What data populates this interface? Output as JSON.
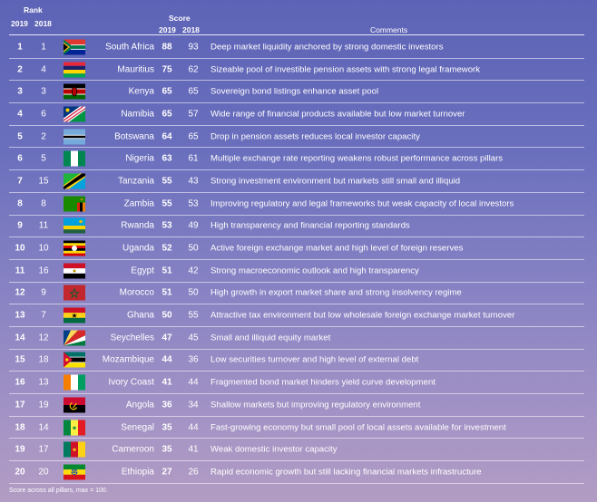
{
  "header": {
    "rank_label": "Rank",
    "rank_2019": "2019",
    "rank_2018": "2018",
    "score_label": "Score",
    "score_2019": "2019",
    "score_2018": "2018",
    "comments_label": "Comments"
  },
  "rows": [
    {
      "rank_2019": "1",
      "rank_2018": "1",
      "flag": "south-africa-flag-icon",
      "country": "South Africa",
      "score_2019": "88",
      "score_2018": "93",
      "comment": "Deep market liquidity anchored by strong domestic investors"
    },
    {
      "rank_2019": "2",
      "rank_2018": "4",
      "flag": "mauritius-flag-icon",
      "country": "Mauritius",
      "score_2019": "75",
      "score_2018": "62",
      "comment": "Sizeable pool of investible pension assets with strong legal framework"
    },
    {
      "rank_2019": "3",
      "rank_2018": "3",
      "flag": "kenya-flag-icon",
      "country": "Kenya",
      "score_2019": "65",
      "score_2018": "65",
      "comment": "Sovereign bond listings enhance asset pool"
    },
    {
      "rank_2019": "4",
      "rank_2018": "6",
      "flag": "namibia-flag-icon",
      "country": "Namibia",
      "score_2019": "65",
      "score_2018": "57",
      "comment": "Wide range of financial products available but low market turnover"
    },
    {
      "rank_2019": "5",
      "rank_2018": "2",
      "flag": "botswana-flag-icon",
      "country": "Botswana",
      "score_2019": "64",
      "score_2018": "65",
      "comment": "Drop in pension assets reduces local investor capacity"
    },
    {
      "rank_2019": "6",
      "rank_2018": "5",
      "flag": "nigeria-flag-icon",
      "country": "Nigeria",
      "score_2019": "63",
      "score_2018": "61",
      "comment": "Multiple exchange rate reporting weakens robust performance across pillars"
    },
    {
      "rank_2019": "7",
      "rank_2018": "15",
      "flag": "tanzania-flag-icon",
      "country": "Tanzania",
      "score_2019": "55",
      "score_2018": "43",
      "comment": "Strong investment environment but markets still small and illiquid"
    },
    {
      "rank_2019": "8",
      "rank_2018": "8",
      "flag": "zambia-flag-icon",
      "country": "Zambia",
      "score_2019": "55",
      "score_2018": "53",
      "comment": "Improving regulatory and legal frameworks but weak capacity of local investors"
    },
    {
      "rank_2019": "9",
      "rank_2018": "11",
      "flag": "rwanda-flag-icon",
      "country": "Rwanda",
      "score_2019": "53",
      "score_2018": "49",
      "comment": "High transparency and financial reporting standards"
    },
    {
      "rank_2019": "10",
      "rank_2018": "10",
      "flag": "uganda-flag-icon",
      "country": "Uganda",
      "score_2019": "52",
      "score_2018": "50",
      "comment": "Active foreign exchange market and high level of foreign reserves"
    },
    {
      "rank_2019": "11",
      "rank_2018": "16",
      "flag": "egypt-flag-icon",
      "country": "Egypt",
      "score_2019": "51",
      "score_2018": "42",
      "comment": "Strong macroeconomic outlook and high transparency"
    },
    {
      "rank_2019": "12",
      "rank_2018": "9",
      "flag": "morocco-flag-icon",
      "country": "Morocco",
      "score_2019": "51",
      "score_2018": "50",
      "comment": "High growth in export market share and strong insolvency regime"
    },
    {
      "rank_2019": "13",
      "rank_2018": "7",
      "flag": "ghana-flag-icon",
      "country": "Ghana",
      "score_2019": "50",
      "score_2018": "55",
      "comment": "Attractive tax environment but low wholesale foreign exchange market turnover"
    },
    {
      "rank_2019": "14",
      "rank_2018": "12",
      "flag": "seychelles-flag-icon",
      "country": "Seychelles",
      "score_2019": "47",
      "score_2018": "45",
      "comment": "Small and illiquid equity market"
    },
    {
      "rank_2019": "15",
      "rank_2018": "18",
      "flag": "mozambique-flag-icon",
      "country": "Mozambique",
      "score_2019": "44",
      "score_2018": "36",
      "comment": "Low securities turnover and high level of external debt"
    },
    {
      "rank_2019": "16",
      "rank_2018": "13",
      "flag": "ivory-coast-flag-icon",
      "country": "Ivory Coast",
      "score_2019": "41",
      "score_2018": "44",
      "comment": "Fragmented bond market hinders yield curve development"
    },
    {
      "rank_2019": "17",
      "rank_2018": "19",
      "flag": "angola-flag-icon",
      "country": "Angola",
      "score_2019": "36",
      "score_2018": "34",
      "comment": "Shallow markets but improving regulatory environment"
    },
    {
      "rank_2019": "18",
      "rank_2018": "14",
      "flag": "senegal-flag-icon",
      "country": "Senegal",
      "score_2019": "35",
      "score_2018": "44",
      "comment": "Fast-growing economy but small pool of local assets available for investment"
    },
    {
      "rank_2019": "19",
      "rank_2018": "17",
      "flag": "cameroon-flag-icon",
      "country": "Cameroon",
      "score_2019": "35",
      "score_2018": "41",
      "comment": "Weak domestic investor capacity"
    },
    {
      "rank_2019": "20",
      "rank_2018": "20",
      "flag": "ethiopia-flag-icon",
      "country": "Ethiopia",
      "score_2019": "27",
      "score_2018": "26",
      "comment": "Rapid economic growth but still lacking financial markets infrastructure"
    }
  ],
  "footnote": "Score across all pillars, max = 100."
}
